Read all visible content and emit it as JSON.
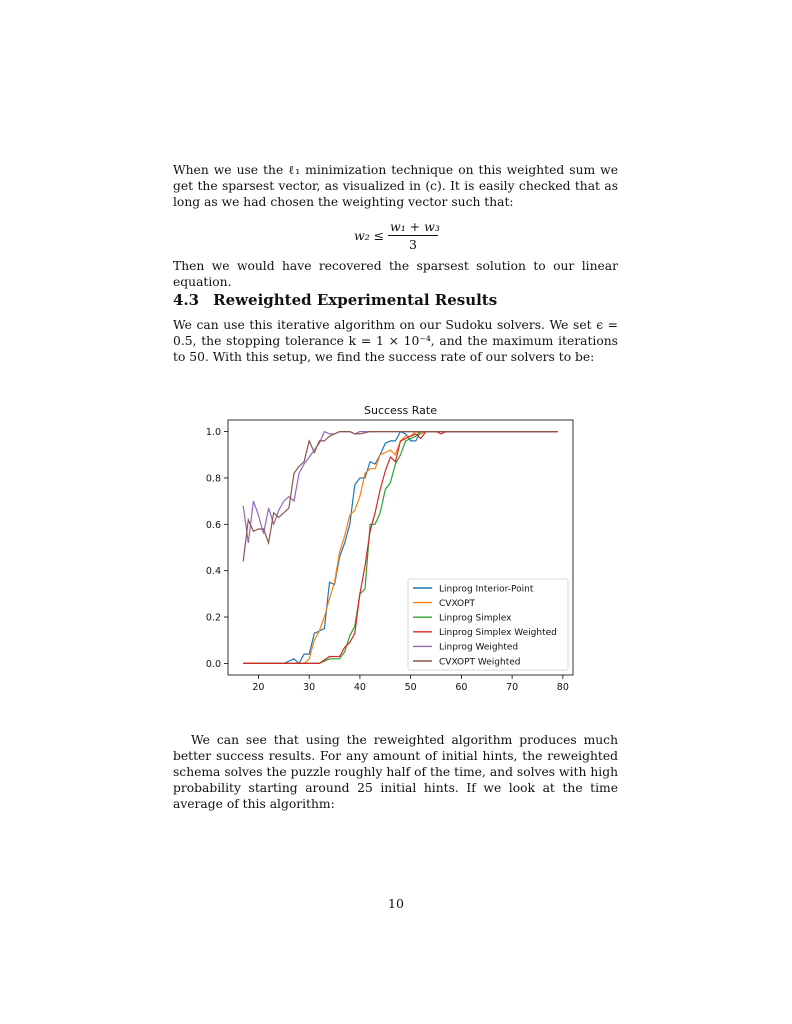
{
  "paragraphs": {
    "p1": "When we use the ℓ₁ minimization technique on this weighted sum we get the sparsest vector, as visualized in (c). It is easily checked that as long as we had chosen the weighting vector such that:",
    "p2": "Then we would have recovered the sparsest solution to our linear equation.",
    "p3": "We can use this iterative algorithm on our Sudoku solvers. We set ϵ = 0.5, the stopping tolerance k = 1 × 10⁻⁴, and the maximum iterations to 50. With this setup, we find the success rate of our solvers to be:",
    "p4": "We can see that using the reweighted algorithm produces much better success results. For any amount of initial hints, the reweighted schema solves the puzzle roughly half of the time, and solves with high probability starting around 25 initial hints. If we look at the time average of this algorithm:"
  },
  "equation": {
    "lhs": "w₂ ≤",
    "numerator": "w₁ + w₃",
    "denominator": "3"
  },
  "section": {
    "number": "4.3",
    "title": "Reweighted Experimental Results"
  },
  "page_number": "10",
  "chart_data": {
    "type": "line",
    "title": "Success Rate",
    "xlabel": "",
    "ylabel": "",
    "xlim": [
      14,
      82
    ],
    "ylim": [
      -0.05,
      1.05
    ],
    "xticks": [
      20,
      30,
      40,
      50,
      60,
      70,
      80
    ],
    "yticks": [
      0.0,
      0.2,
      0.4,
      0.6,
      0.8,
      1.0
    ],
    "xtick_labels": [
      "20",
      "30",
      "40",
      "50",
      "60",
      "70",
      "80"
    ],
    "ytick_labels": [
      "0.0",
      "0.2",
      "0.4",
      "0.6",
      "0.8",
      "1.0"
    ],
    "grid": false,
    "legend_position": "lower-right",
    "series": [
      {
        "name": "Linprog Interior-Point",
        "color": "#1f77b4",
        "x": [
          17,
          19,
          21,
          23,
          25,
          27,
          28,
          29,
          30,
          31,
          32,
          33,
          34,
          35,
          36,
          37,
          38,
          39,
          40,
          41,
          42,
          43,
          44,
          45,
          46,
          47,
          48,
          49,
          50,
          51,
          52,
          53,
          54,
          55,
          56,
          58,
          60,
          65,
          70,
          75,
          79
        ],
        "y": [
          0,
          0,
          0,
          0,
          0,
          0.02,
          0,
          0.04,
          0.04,
          0.13,
          0.14,
          0.15,
          0.35,
          0.34,
          0.46,
          0.52,
          0.6,
          0.77,
          0.8,
          0.8,
          0.87,
          0.86,
          0.9,
          0.95,
          0.96,
          0.96,
          1.0,
          0.99,
          0.96,
          0.96,
          1.0,
          1.0,
          1.0,
          1.0,
          1.0,
          1.0,
          1.0,
          1.0,
          1.0,
          1.0,
          1.0
        ]
      },
      {
        "name": "CVXOPT",
        "color": "#ff7f0e",
        "x": [
          17,
          19,
          21,
          23,
          25,
          27,
          28,
          29,
          30,
          31,
          32,
          33,
          34,
          35,
          36,
          37,
          38,
          39,
          40,
          41,
          42,
          43,
          44,
          45,
          46,
          47,
          48,
          49,
          50,
          51,
          52,
          53,
          54,
          55,
          56,
          58,
          60,
          65,
          70,
          75,
          79
        ],
        "y": [
          0,
          0,
          0,
          0,
          0,
          0,
          0,
          0,
          0.02,
          0.1,
          0.14,
          0.2,
          0.28,
          0.35,
          0.48,
          0.55,
          0.64,
          0.66,
          0.72,
          0.82,
          0.84,
          0.84,
          0.9,
          0.91,
          0.92,
          0.9,
          0.96,
          0.98,
          0.98,
          1.0,
          0.99,
          1.0,
          1.0,
          1.0,
          1.0,
          1.0,
          1.0,
          1.0,
          1.0,
          1.0,
          1.0
        ]
      },
      {
        "name": "Linprog Simplex",
        "color": "#2ca02c",
        "x": [
          17,
          20,
          25,
          30,
          32,
          34,
          36,
          37,
          38,
          39,
          40,
          41,
          42,
          43,
          44,
          45,
          46,
          47,
          48,
          49,
          50,
          51,
          52,
          54,
          56,
          60,
          65,
          70,
          75,
          79
        ],
        "y": [
          0,
          0,
          0,
          0,
          0,
          0.02,
          0.02,
          0.05,
          0.12,
          0.16,
          0.3,
          0.32,
          0.6,
          0.6,
          0.65,
          0.75,
          0.78,
          0.86,
          0.9,
          0.96,
          0.97,
          0.98,
          1.0,
          1.0,
          1.0,
          1.0,
          1.0,
          1.0,
          1.0,
          1.0
        ]
      },
      {
        "name": "Linprog Simplex Weighted",
        "color": "#d62728",
        "x": [
          17,
          20,
          25,
          30,
          32,
          34,
          36,
          37,
          38,
          39,
          40,
          41,
          42,
          43,
          44,
          45,
          46,
          47,
          48,
          49,
          50,
          51,
          52,
          53,
          54,
          55,
          56,
          57,
          58,
          60,
          65,
          70,
          75,
          79
        ],
        "y": [
          0,
          0,
          0,
          0,
          0,
          0.03,
          0.03,
          0.07,
          0.09,
          0.13,
          0.3,
          0.42,
          0.57,
          0.65,
          0.75,
          0.83,
          0.89,
          0.87,
          0.96,
          0.97,
          0.98,
          0.99,
          0.97,
          1.0,
          1.0,
          1.0,
          0.99,
          1.0,
          1.0,
          1.0,
          1.0,
          1.0,
          1.0,
          1.0
        ]
      },
      {
        "name": "Linprog Weighted",
        "color": "#9467bd",
        "x": [
          17,
          18,
          19,
          20,
          21,
          22,
          23,
          24,
          25,
          26,
          27,
          28,
          29,
          30,
          31,
          32,
          33,
          34,
          35,
          36,
          37,
          38,
          39,
          40,
          42,
          44,
          46,
          48,
          50,
          55,
          60,
          65,
          70,
          75,
          79
        ],
        "y": [
          0.68,
          0.52,
          0.7,
          0.64,
          0.56,
          0.67,
          0.6,
          0.66,
          0.7,
          0.72,
          0.7,
          0.82,
          0.86,
          0.89,
          0.92,
          0.95,
          1.0,
          0.99,
          0.99,
          1.0,
          1.0,
          1.0,
          0.99,
          1.0,
          1.0,
          1.0,
          1.0,
          1.0,
          1.0,
          1.0,
          1.0,
          1.0,
          1.0,
          1.0,
          1.0
        ]
      },
      {
        "name": "CVXOPT Weighted",
        "color": "#8c564b",
        "x": [
          17,
          18,
          19,
          20,
          21,
          22,
          23,
          24,
          25,
          26,
          27,
          28,
          29,
          30,
          31,
          32,
          33,
          34,
          35,
          36,
          37,
          38,
          39,
          40,
          42,
          44,
          46,
          48,
          50,
          55,
          60,
          65,
          70,
          75,
          79
        ],
        "y": [
          0.44,
          0.62,
          0.57,
          0.58,
          0.58,
          0.52,
          0.65,
          0.63,
          0.65,
          0.67,
          0.82,
          0.85,
          0.87,
          0.96,
          0.91,
          0.96,
          0.96,
          0.98,
          0.99,
          1.0,
          1.0,
          1.0,
          0.99,
          0.99,
          1.0,
          1.0,
          1.0,
          1.0,
          1.0,
          1.0,
          1.0,
          1.0,
          1.0,
          1.0,
          1.0
        ]
      }
    ]
  }
}
